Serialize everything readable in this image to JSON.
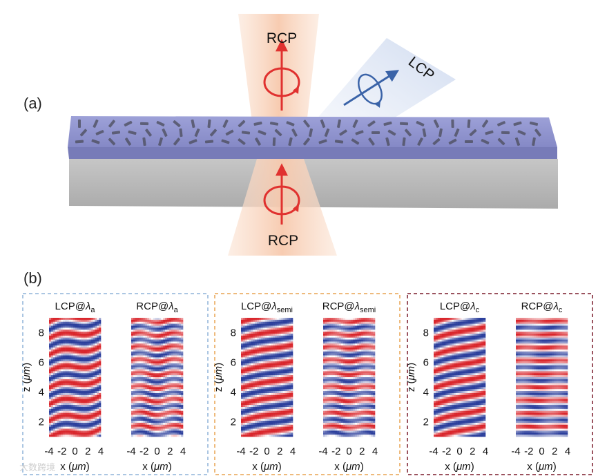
{
  "panel_a": {
    "label": "(a)",
    "top_beam_label": "RCP",
    "bottom_beam_label": "RCP",
    "side_beam_label": "LCP",
    "colors": {
      "rcp": "#e0312f",
      "lcp": "#3a63a8",
      "metasurface": "#8f93cc",
      "substrate": "#c9c9c9"
    }
  },
  "panel_b": {
    "label": "(b)",
    "groups": [
      {
        "frame_color": "#8fb3d9",
        "plots": [
          {
            "title_main": "LCP@",
            "title_symbol": "λ",
            "title_sub": "a",
            "pattern": "tilted"
          },
          {
            "title_main": "RCP@",
            "title_symbol": "λ",
            "title_sub": "a",
            "pattern": "flat"
          }
        ]
      },
      {
        "frame_color": "#e8a450",
        "plots": [
          {
            "title_main": "LCP@",
            "title_symbol": "λ",
            "title_sub": "semi",
            "pattern": "tilted"
          },
          {
            "title_main": "RCP@",
            "title_symbol": "λ",
            "title_sub": "semi",
            "pattern": "flat"
          }
        ]
      },
      {
        "frame_color": "#7a1a2a",
        "plots": [
          {
            "title_main": "LCP@",
            "title_symbol": "λ",
            "title_sub": "c",
            "pattern": "tilted"
          },
          {
            "title_main": "RCP@",
            "title_symbol": "λ",
            "title_sub": "c",
            "pattern": "flat"
          }
        ]
      }
    ],
    "y_label_main": "z (",
    "y_label_unit": "μm",
    "y_label_close": ")",
    "x_label_main": "x (",
    "x_label_unit": "μm",
    "x_label_close": ")",
    "x_ticks": [
      "-4",
      "-2",
      "0",
      "2",
      "4"
    ],
    "y_ticks": [
      "8",
      "6",
      "4",
      "2"
    ],
    "x_range": [
      -4,
      4
    ],
    "y_range": [
      1,
      9
    ],
    "field_colors": {
      "positive": "#d9262c",
      "negative": "#2c3f9c",
      "zero": "#ffffff"
    }
  },
  "watermark": "大数跨境"
}
